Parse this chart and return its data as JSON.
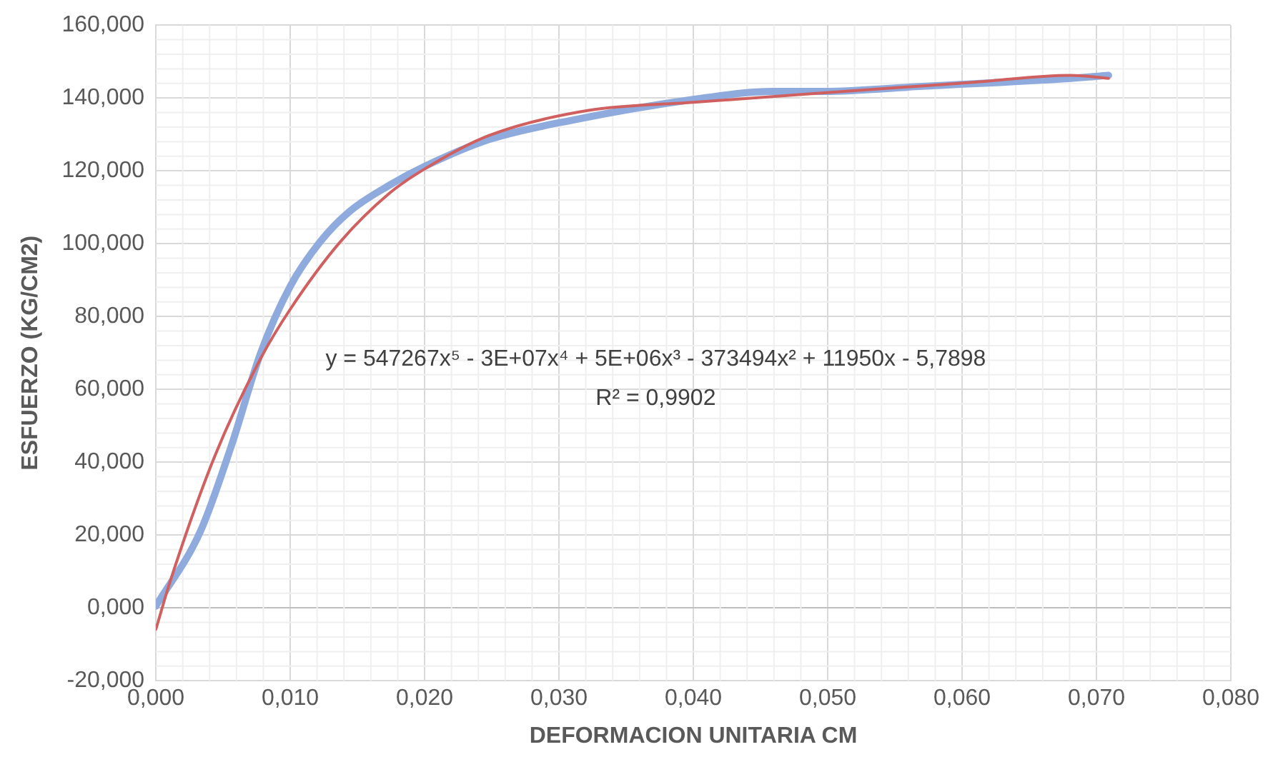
{
  "chart_data": {
    "type": "line",
    "xlabel": "DEFORMACION UNITARIA CM",
    "ylabel": "ESFUERZO (KG/CM2)",
    "xlim": [
      0,
      0.08
    ],
    "xticks": [
      {
        "value": 0,
        "label": "0,000"
      },
      {
        "value": 0.01,
        "label": "0,010"
      },
      {
        "value": 0.02,
        "label": "0,020"
      },
      {
        "value": 0.03,
        "label": "0,030"
      },
      {
        "value": 0.04,
        "label": "0,040"
      },
      {
        "value": 0.05,
        "label": "0,050"
      },
      {
        "value": 0.06,
        "label": "0,060"
      },
      {
        "value": 0.07,
        "label": "0,070"
      },
      {
        "value": 0.08,
        "label": "0,080"
      }
    ],
    "ylim": [
      -20,
      160
    ],
    "yticks": [
      {
        "value": -20,
        "label": "-20,000"
      },
      {
        "value": 0,
        "label": "0,000"
      },
      {
        "value": 20,
        "label": "20,000"
      },
      {
        "value": 40,
        "label": "40,000"
      },
      {
        "value": 60,
        "label": "60,000"
      },
      {
        "value": 80,
        "label": "80,000"
      },
      {
        "value": 100,
        "label": "100,000"
      },
      {
        "value": 120,
        "label": "120,000"
      },
      {
        "value": 140,
        "label": "140,000"
      },
      {
        "value": 160,
        "label": "160,000"
      }
    ],
    "grid": true,
    "legend": false,
    "marker": "none",
    "line_style": "solid",
    "series": [
      {
        "color": "#8faadc",
        "x": [
          0,
          0.0033,
          0.0056,
          0.0078,
          0.01,
          0.0122,
          0.0144,
          0.0174,
          0.02,
          0.0248,
          0.0311,
          0.04,
          0.0459,
          0.0497,
          0.057,
          0.0681,
          0.0709
        ],
        "values": [
          0.5,
          20.9,
          44.3,
          70,
          88.3,
          100.4,
          108.8,
          116.1,
          121.2,
          128.6,
          134,
          139.6,
          141.8,
          141.8,
          143.2,
          145.4,
          146.2
        ]
      },
      {
        "type": "line",
        "color": "#d06060",
        "x": [
          0,
          0.0011,
          0.0044,
          0.0078,
          0.01,
          0.0137,
          0.0174,
          0.02,
          0.0248,
          0.0322,
          0.04,
          0.0497,
          0.0608,
          0.0681,
          0.0709
        ],
        "values": [
          -5.9,
          7.7,
          41.8,
          68.5,
          82,
          100.4,
          113.9,
          120.5,
          129.7,
          136.6,
          138.8,
          141.4,
          144.3,
          146.2,
          145.4
        ]
      }
    ],
    "annotations": [
      "y = 547267x⁵ - 3E+07x⁴ + 5E+06x³ - 373494x² + 11950x - 5,7898",
      "R² = 0,9902"
    ]
  }
}
